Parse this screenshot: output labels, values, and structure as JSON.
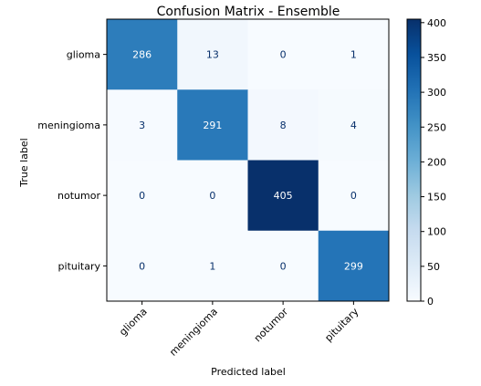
{
  "chart_data": {
    "type": "heatmap",
    "title": "Confusion Matrix - Ensemble",
    "xlabel": "Predicted label",
    "ylabel": "True label",
    "x_categories": [
      "glioma",
      "meningioma",
      "notumor",
      "pituitary"
    ],
    "y_categories": [
      "glioma",
      "meningioma",
      "notumor",
      "pituitary"
    ],
    "values": [
      [
        286,
        13,
        0,
        1
      ],
      [
        3,
        291,
        8,
        4
      ],
      [
        0,
        0,
        405,
        0
      ],
      [
        0,
        1,
        0,
        299
      ]
    ],
    "colorbar": {
      "colormap": "Blues",
      "range": [
        0,
        405
      ],
      "ticks": [
        "0",
        "50",
        "100",
        "150",
        "200",
        "250",
        "300",
        "350",
        "400"
      ]
    },
    "colors": {
      "text_dark": "#08306b",
      "text_light": "#ffffff",
      "axis": "#000000"
    }
  }
}
